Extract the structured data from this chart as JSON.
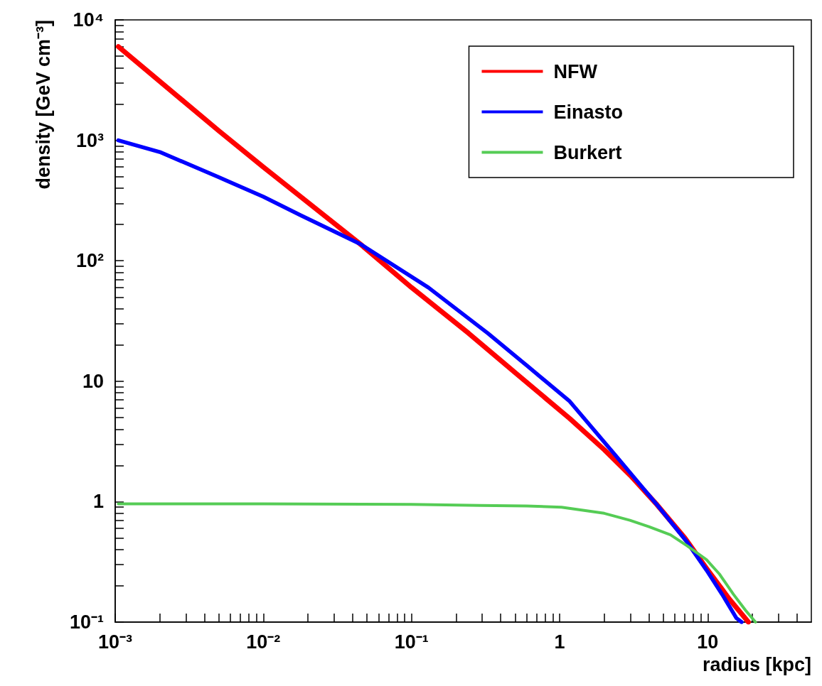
{
  "chart_data": {
    "type": "line",
    "xlabel": "radius [kpc]",
    "ylabel": "density [GeV cm⁻³]",
    "log": "xy",
    "xlim": [
      0.001,
      50
    ],
    "ylim": [
      0.1,
      10000
    ],
    "xticks": [
      {
        "value": 0.001,
        "label": "10⁻³"
      },
      {
        "value": 0.002,
        "label": null
      },
      {
        "value": 0.003,
        "label": null
      },
      {
        "value": 0.004,
        "label": null
      },
      {
        "value": 0.005,
        "label": null
      },
      {
        "value": 0.006,
        "label": null
      },
      {
        "value": 0.007,
        "label": null
      },
      {
        "value": 0.008,
        "label": null
      },
      {
        "value": 0.009,
        "label": null
      },
      {
        "value": 0.01,
        "label": "10⁻²"
      },
      {
        "value": 0.02,
        "label": null
      },
      {
        "value": 0.03,
        "label": null
      },
      {
        "value": 0.04,
        "label": null
      },
      {
        "value": 0.05,
        "label": null
      },
      {
        "value": 0.06,
        "label": null
      },
      {
        "value": 0.07,
        "label": null
      },
      {
        "value": 0.08,
        "label": null
      },
      {
        "value": 0.09,
        "label": null
      },
      {
        "value": 0.1,
        "label": "10⁻¹"
      },
      {
        "value": 0.2,
        "label": null
      },
      {
        "value": 0.3,
        "label": null
      },
      {
        "value": 0.4,
        "label": null
      },
      {
        "value": 0.5,
        "label": null
      },
      {
        "value": 0.6,
        "label": null
      },
      {
        "value": 0.7,
        "label": null
      },
      {
        "value": 0.8,
        "label": null
      },
      {
        "value": 0.9,
        "label": null
      },
      1,
      {
        "value": 2,
        "label": null
      },
      {
        "value": 3,
        "label": null
      },
      {
        "value": 4,
        "label": null
      },
      {
        "value": 5,
        "label": null
      },
      {
        "value": 6,
        "label": null
      },
      {
        "value": 7,
        "label": null
      },
      {
        "value": 8,
        "label": null
      },
      {
        "value": 9,
        "label": null
      },
      10,
      {
        "value": 20,
        "label": null
      },
      {
        "value": 30,
        "label": null
      },
      {
        "value": 40,
        "label": null
      }
    ],
    "yticks": [
      {
        "value": 0.1,
        "label": "10⁻¹"
      },
      {
        "value": 0.2,
        "label": null
      },
      {
        "value": 0.3,
        "label": null
      },
      {
        "value": 0.4,
        "label": null
      },
      {
        "value": 0.5,
        "label": null
      },
      {
        "value": 0.6,
        "label": null
      },
      {
        "value": 0.7,
        "label": null
      },
      {
        "value": 0.8,
        "label": null
      },
      {
        "value": 0.9,
        "label": null
      },
      1,
      {
        "value": 2,
        "label": null
      },
      {
        "value": 3,
        "label": null
      },
      {
        "value": 4,
        "label": null
      },
      {
        "value": 5,
        "label": null
      },
      {
        "value": 6,
        "label": null
      },
      {
        "value": 7,
        "label": null
      },
      {
        "value": 8,
        "label": null
      },
      {
        "value": 9,
        "label": null
      },
      10,
      {
        "value": 20,
        "label": null
      },
      {
        "value": 30,
        "label": null
      },
      {
        "value": 40,
        "label": null
      },
      {
        "value": 50,
        "label": null
      },
      {
        "value": 60,
        "label": null
      },
      {
        "value": 70,
        "label": null
      },
      {
        "value": 80,
        "label": null
      },
      {
        "value": 90,
        "label": null
      },
      {
        "value": 100,
        "label": "10²"
      },
      {
        "value": 200,
        "label": null
      },
      {
        "value": 300,
        "label": null
      },
      {
        "value": 400,
        "label": null
      },
      {
        "value": 500,
        "label": null
      },
      {
        "value": 600,
        "label": null
      },
      {
        "value": 700,
        "label": null
      },
      {
        "value": 800,
        "label": null
      },
      {
        "value": 900,
        "label": null
      },
      {
        "value": 1000,
        "label": "10³"
      },
      {
        "value": 2000,
        "label": null
      },
      {
        "value": 3000,
        "label": null
      },
      {
        "value": 4000,
        "label": null
      },
      {
        "value": 5000,
        "label": null
      },
      {
        "value": 6000,
        "label": null
      },
      {
        "value": 7000,
        "label": null
      },
      {
        "value": 8000,
        "label": null
      },
      {
        "value": 9000,
        "label": null
      },
      {
        "value": 10000,
        "label": "10⁴"
      }
    ],
    "grid": false,
    "legend": "top right",
    "marker": "none",
    "line_style": "solid",
    "series": [
      {
        "name": "NFW",
        "color": "#ff0000",
        "x": [
          0.00105,
          0.005,
          0.01,
          0.045,
          0.1,
          0.243,
          0.5,
          1.17,
          2,
          3,
          4.55,
          7,
          9.8,
          14,
          18.8
        ],
        "values": [
          6000,
          1200,
          600,
          138,
          60,
          25,
          11.8,
          4.9,
          2.7,
          1.65,
          0.94,
          0.5,
          0.28,
          0.155,
          0.1
        ]
      },
      {
        "name": "Einasto",
        "color": "#0000ff",
        "x": [
          0.00105,
          0.002,
          0.005,
          0.01,
          0.0178,
          0.045,
          0.13,
          0.328,
          0.6,
          1.17,
          2.4,
          4.55,
          7.26,
          9.8,
          12.5,
          15.6,
          16.9
        ],
        "values": [
          1000,
          800,
          494,
          340,
          239,
          138,
          60,
          25,
          13.5,
          6.8,
          2.4,
          0.94,
          0.46,
          0.27,
          0.17,
          0.108,
          0.1
        ]
      },
      {
        "name": "Burkert",
        "color": "#55cc55",
        "x": [
          0.00105,
          0.01,
          0.1,
          0.29,
          0.6,
          1.03,
          2,
          2.98,
          4,
          5.6,
          7.26,
          9.8,
          12,
          14.9,
          18,
          21
        ],
        "values": [
          0.96,
          0.96,
          0.95,
          0.93,
          0.92,
          0.9,
          0.8,
          0.7,
          0.62,
          0.53,
          0.43,
          0.33,
          0.25,
          0.17,
          0.125,
          0.1
        ]
      }
    ]
  }
}
